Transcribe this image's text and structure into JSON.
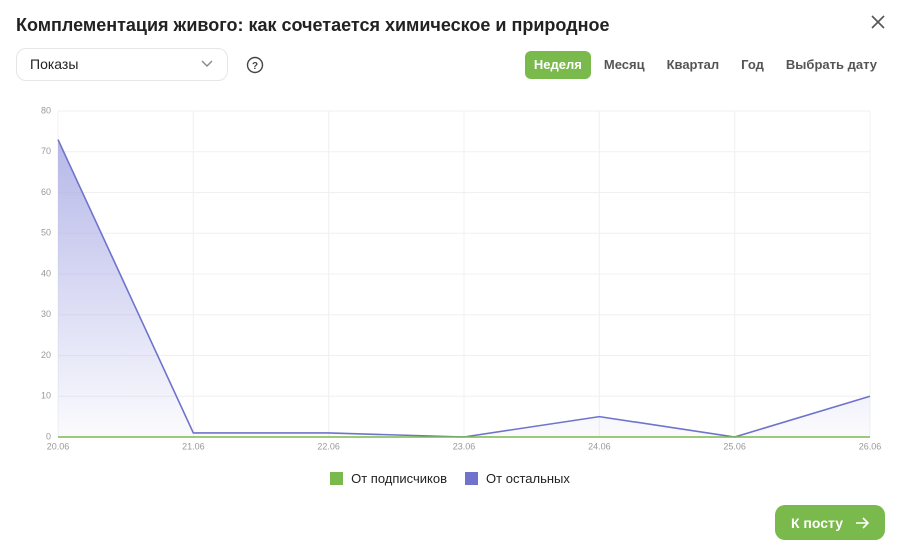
{
  "header": {
    "title": "Комплементация живого: как сочетается химическое и природное"
  },
  "controls": {
    "metric": "Показы",
    "periods": [
      "Неделя",
      "Месяц",
      "Квартал",
      "Год",
      "Выбрать дату"
    ],
    "active_period": 0
  },
  "footer": {
    "button": "К посту"
  },
  "chart_data": {
    "type": "area",
    "categories": [
      "20.06",
      "21.06",
      "22.06",
      "23.06",
      "24.06",
      "25.06",
      "26.06"
    ],
    "series": [
      {
        "name": "От подписчиков",
        "color": "#7ab94c",
        "values": [
          0,
          0,
          0,
          0,
          0,
          0,
          0
        ]
      },
      {
        "name": "От остальных",
        "color": "#6f73cc",
        "values": [
          73,
          1,
          1,
          0,
          5,
          0,
          10
        ]
      }
    ],
    "ylim": [
      0,
      80
    ],
    "yticks": [
      0,
      10,
      20,
      30,
      40,
      50,
      60,
      70,
      80
    ],
    "grid": true
  }
}
